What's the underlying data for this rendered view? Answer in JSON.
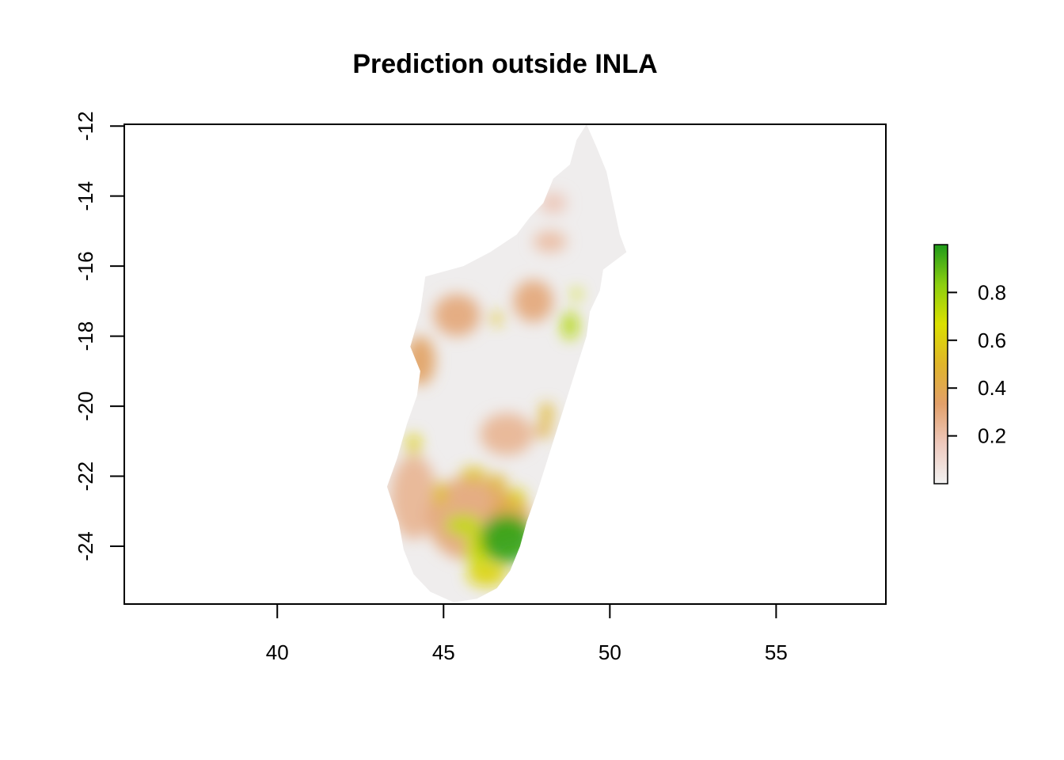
{
  "chart_data": {
    "type": "heatmap",
    "title": "Prediction outside INLA",
    "xlabel": "",
    "ylabel": "",
    "xlim": [
      35.4,
      58.3
    ],
    "ylim": [
      -25.65,
      -11.95
    ],
    "x_ticks": [
      40,
      45,
      50,
      55
    ],
    "x_tick_labels": [
      "40",
      "45",
      "50",
      "55"
    ],
    "y_ticks": [
      -12,
      -14,
      -16,
      -18,
      -20,
      -22,
      -24
    ],
    "y_tick_labels": [
      "-12",
      "-14",
      "-16",
      "-18",
      "-20",
      "-22",
      "-24"
    ],
    "legend": {
      "position": "right",
      "range": [
        0.0,
        1.0
      ],
      "ticks": [
        0.2,
        0.4,
        0.6,
        0.8
      ],
      "tick_labels": [
        "0.2",
        "0.4",
        "0.6",
        "0.8"
      ],
      "colors": [
        "#f2f2f2",
        "#eec9bd",
        "#e2a06a",
        "#e0b52a",
        "#dbe000",
        "#8ccf10",
        "#1f9a1a"
      ]
    },
    "region_outline": [
      [
        49.3,
        -11.95
      ],
      [
        49.6,
        -12.6
      ],
      [
        49.9,
        -13.3
      ],
      [
        50.1,
        -14.2
      ],
      [
        50.3,
        -15.1
      ],
      [
        50.5,
        -15.6
      ],
      [
        49.8,
        -16.1
      ],
      [
        49.7,
        -16.7
      ],
      [
        49.4,
        -17.3
      ],
      [
        49.3,
        -18.0
      ],
      [
        49.0,
        -18.9
      ],
      [
        48.7,
        -19.8
      ],
      [
        48.4,
        -20.7
      ],
      [
        48.1,
        -21.6
      ],
      [
        47.8,
        -22.5
      ],
      [
        47.5,
        -23.3
      ],
      [
        47.3,
        -24.0
      ],
      [
        47.0,
        -24.7
      ],
      [
        46.6,
        -25.2
      ],
      [
        46.0,
        -25.5
      ],
      [
        45.3,
        -25.6
      ],
      [
        44.6,
        -25.3
      ],
      [
        44.1,
        -24.8
      ],
      [
        43.8,
        -24.1
      ],
      [
        43.65,
        -23.3
      ],
      [
        43.3,
        -22.3
      ],
      [
        43.6,
        -21.5
      ],
      [
        43.9,
        -20.5
      ],
      [
        44.2,
        -19.7
      ],
      [
        44.3,
        -19.0
      ],
      [
        44.0,
        -18.3
      ],
      [
        44.3,
        -17.3
      ],
      [
        44.45,
        -16.3
      ],
      [
        45.6,
        -16.0
      ],
      [
        46.4,
        -15.6
      ],
      [
        47.2,
        -15.1
      ],
      [
        47.6,
        -14.6
      ],
      [
        48.0,
        -14.2
      ],
      [
        48.3,
        -13.5
      ],
      [
        48.8,
        -13.1
      ],
      [
        49.0,
        -12.4
      ],
      [
        49.3,
        -11.95
      ]
    ],
    "hotspots": [
      {
        "lon": 46.9,
        "lat": -23.8,
        "rx": 0.8,
        "ry": 0.7,
        "value": 0.97
      },
      {
        "lon": 45.6,
        "lat": -23.4,
        "rx": 0.55,
        "ry": 0.3,
        "value": 0.72
      },
      {
        "lon": 46.0,
        "lat": -24.1,
        "rx": 0.35,
        "ry": 0.5,
        "value": 0.7
      },
      {
        "lon": 46.3,
        "lat": -24.8,
        "rx": 0.6,
        "ry": 0.35,
        "value": 0.62
      },
      {
        "lon": 45.9,
        "lat": -21.95,
        "rx": 0.4,
        "ry": 0.2,
        "value": 0.55
      },
      {
        "lon": 46.6,
        "lat": -22.2,
        "rx": 0.3,
        "ry": 0.25,
        "value": 0.5
      },
      {
        "lon": 47.2,
        "lat": -22.6,
        "rx": 0.25,
        "ry": 0.25,
        "value": 0.6
      },
      {
        "lon": 44.9,
        "lat": -22.5,
        "rx": 0.2,
        "ry": 0.35,
        "value": 0.55
      },
      {
        "lon": 44.1,
        "lat": -21.1,
        "rx": 0.2,
        "ry": 0.3,
        "value": 0.6
      },
      {
        "lon": 48.8,
        "lat": -17.7,
        "rx": 0.25,
        "ry": 0.4,
        "value": 0.75
      },
      {
        "lon": 49.0,
        "lat": -16.8,
        "rx": 0.15,
        "ry": 0.15,
        "value": 0.7
      },
      {
        "lon": 46.6,
        "lat": -17.5,
        "rx": 0.15,
        "ry": 0.2,
        "value": 0.55
      },
      {
        "lon": 48.1,
        "lat": -20.2,
        "rx": 0.2,
        "ry": 0.3,
        "value": 0.5
      },
      {
        "lon": 48.0,
        "lat": -20.7,
        "rx": 0.25,
        "ry": 0.2,
        "value": 0.45
      },
      {
        "lon": 47.0,
        "lat": -23.2,
        "rx": 0.6,
        "ry": 0.8,
        "value": 0.4
      },
      {
        "lon": 45.8,
        "lat": -23.2,
        "rx": 1.3,
        "ry": 1.2,
        "value": 0.3
      },
      {
        "lon": 44.3,
        "lat": -18.7,
        "rx": 0.45,
        "ry": 0.7,
        "value": 0.35
      },
      {
        "lon": 45.4,
        "lat": -17.4,
        "rx": 0.7,
        "ry": 0.6,
        "value": 0.3
      },
      {
        "lon": 47.7,
        "lat": -17.0,
        "rx": 0.6,
        "ry": 0.6,
        "value": 0.3
      },
      {
        "lon": 46.9,
        "lat": -20.8,
        "rx": 0.8,
        "ry": 0.6,
        "value": 0.25
      },
      {
        "lon": 44.1,
        "lat": -22.6,
        "rx": 0.7,
        "ry": 1.2,
        "value": 0.25
      },
      {
        "lon": 48.2,
        "lat": -15.3,
        "rx": 0.5,
        "ry": 0.3,
        "value": 0.22
      },
      {
        "lon": 48.3,
        "lat": -14.2,
        "rx": 0.4,
        "ry": 0.3,
        "value": 0.18
      }
    ]
  }
}
